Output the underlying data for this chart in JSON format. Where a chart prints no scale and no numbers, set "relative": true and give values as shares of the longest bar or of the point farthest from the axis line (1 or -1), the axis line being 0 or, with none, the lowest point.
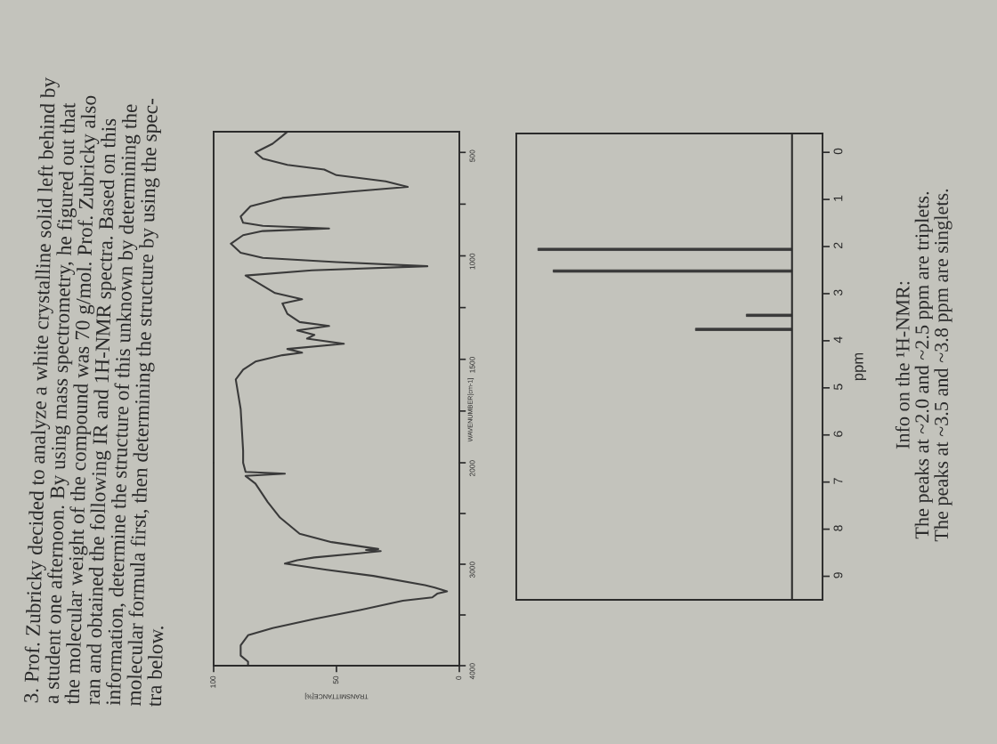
{
  "chart_data": [
    {
      "type": "line",
      "orientation": "horizontal",
      "xlabel": "TRANSMITTANCE[%]",
      "xlim": [
        100,
        0
      ],
      "xticks": [
        100,
        50,
        0
      ],
      "ylim": [
        4000,
        2000
      ],
      "yticks": [
        4000,
        {
          "value": 3500,
          "label": null
        },
        3000,
        {
          "value": 2500,
          "label": null
        },
        2000
      ],
      "annotations": [
        "3. Prof. Zubricky decided to analyze a white crystalline solid left behind by\na student one afternoon. By using mass spectrometry, he figured out that\nthe molecular weight of the compound was 70 g/mol. Prof. Zubricky also\nran and obtained the following IR and 1H-NMR spectra. Based on this\ninformation, determine the structure of this unknown by determining the\nmolecular formula first, then determining the structure by using the spec-\ntra below."
      ],
      "series": [
        {
          "color": "#3a3a3a",
          "x": [
            4000,
            3960,
            3900,
            3800,
            3700,
            3630,
            3540,
            3450,
            3360,
            3327,
            3290,
            3267,
            3230,
            3206,
            3115,
            3055,
            2994,
            2960,
            2933,
            2890,
            2870,
            2860,
            2850,
            2782,
            2700,
            2540,
            2387,
            2205,
            2130,
            2107,
            2090,
            2000
          ],
          "values": [
            86,
            86,
            89,
            89,
            86,
            76,
            59,
            40,
            23,
            11,
            9,
            5,
            10,
            14,
            35,
            54,
            71,
            66,
            59,
            40,
            32,
            38,
            33,
            52,
            65,
            73,
            78,
            83,
            87,
            71,
            87,
            88
          ]
        }
      ]
    },
    {
      "type": "line",
      "orientation": "horizontal",
      "ylabel": "WAVENUMBER[cm-1]",
      "xlim": [
        100,
        0
      ],
      "ylim": [
        2000,
        400
      ],
      "yticks": [
        {
          "value": 1750,
          "label": null
        },
        1500,
        {
          "value": 1250,
          "label": null
        },
        1000,
        {
          "value": 750,
          "label": null
        },
        500
      ],
      "tick_labels": "y",
      "series": [
        {
          "color": "#3a3a3a",
          "x": [
            2000,
            1942,
            1741,
            1597,
            1550,
            1511,
            1480,
            1468,
            1450,
            1425,
            1400,
            1382,
            1360,
            1339,
            1320,
            1280,
            1230,
            1210,
            1180,
            1123,
            1095,
            1070,
            1050,
            1030,
            1010,
            985,
            941,
            900,
            880,
            868,
            855,
            840,
            810,
            760,
            720,
            690,
            667,
            640,
            610,
            583,
            560,
            530,
            500,
            458,
            420,
            400
          ],
          "values": [
            88,
            88,
            89,
            91,
            88,
            83,
            72,
            64,
            70,
            47,
            62,
            59,
            66,
            53,
            65,
            70,
            72,
            64,
            75,
            83,
            87,
            60,
            13,
            50,
            80,
            89,
            93,
            88,
            80,
            53,
            80,
            88,
            89,
            85,
            72,
            45,
            21,
            30,
            50,
            55,
            70,
            80,
            83,
            76,
            72,
            70
          ]
        }
      ]
    },
    {
      "type": "bar",
      "orientation": "horizontal",
      "relative": true,
      "ylabel": "ppm",
      "ylim": [
        9.5,
        -0.4
      ],
      "yticks": [
        9,
        8,
        7,
        6,
        5,
        4,
        3,
        2,
        1,
        0
      ],
      "x": [
        2.06,
        2.52,
        3.46,
        3.76
      ],
      "annotations": [
        "Info on the ¹H-NMR:\nThe peaks at ~2.0 and ~2.5 ppm are triplets.\nThe peaks at ~3.5 and ~3.8 ppm are singlets."
      ],
      "series": [
        {
          "color": "#3a3a3a",
          "values": [
            1,
            0.94,
            0.18,
            0.38
          ]
        }
      ]
    }
  ]
}
